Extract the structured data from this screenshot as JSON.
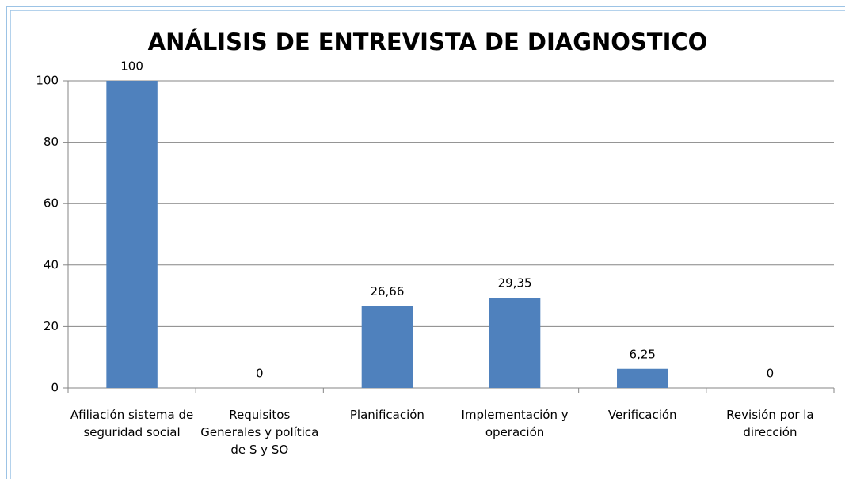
{
  "chart_data": {
    "type": "bar",
    "title": "ANÁLISIS DE ENTREVISTA DE DIAGNOSTICO",
    "categories": [
      "Afiliación sistema de seguridad social",
      "Requisitos Generales y política de S y SO",
      "Planificación",
      "Implementación y operación",
      "Verificación",
      "Revisión por la dirección"
    ],
    "values": [
      100,
      0,
      26.66,
      29.35,
      6.25,
      0
    ],
    "value_labels": [
      "100",
      "0",
      "26,66",
      "29,35",
      "6,25",
      "0"
    ],
    "color": "#4f81bd",
    "ylim": [
      0,
      100
    ],
    "yticks": [
      0,
      20,
      40,
      60,
      80,
      100
    ],
    "grid": true
  }
}
